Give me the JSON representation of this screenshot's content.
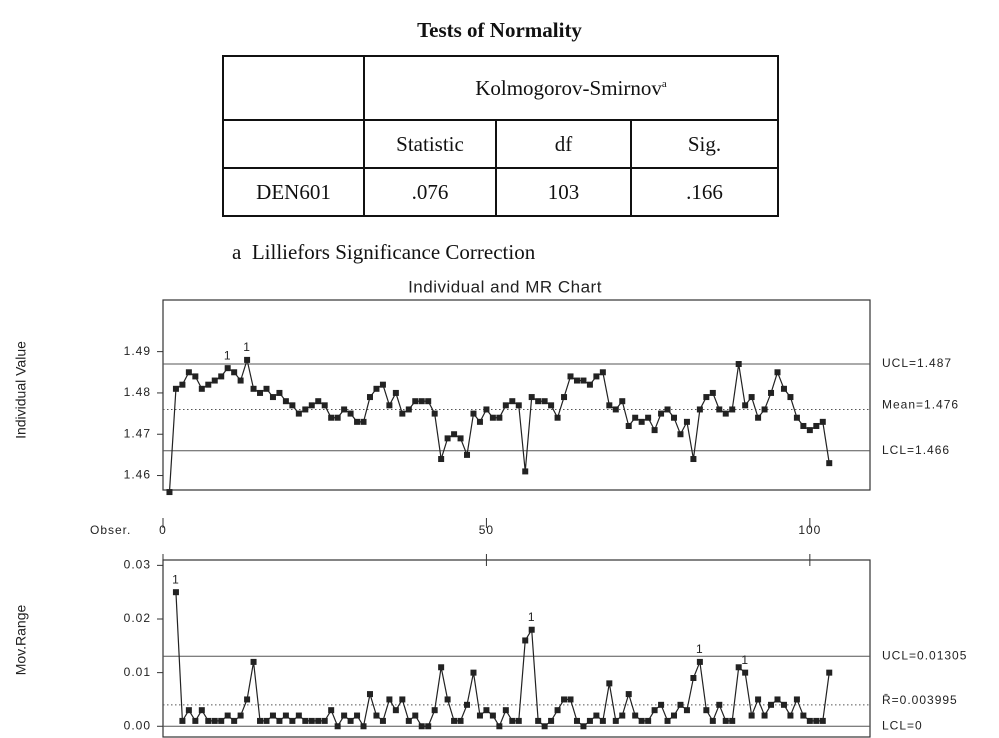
{
  "title": "Tests of Normality",
  "table": {
    "group_header": "Kolmogorov-Smirnov",
    "group_header_note": "a",
    "columns": [
      "Statistic",
      "df",
      "Sig."
    ],
    "rows": [
      [
        "DEN601",
        ".076",
        "103",
        ".166"
      ]
    ]
  },
  "footnote": "a  Lilliefors Significance Correction",
  "chart_data": [
    {
      "type": "line",
      "title": "Individual and MR Chart",
      "ylabel": "Individual Value",
      "xlabel": "Obser.",
      "x": [
        1,
        2,
        3,
        4,
        5,
        6,
        7,
        8,
        9,
        10,
        11,
        12,
        13,
        14,
        15,
        16,
        17,
        18,
        19,
        20,
        21,
        22,
        23,
        24,
        25,
        26,
        27,
        28,
        29,
        30,
        31,
        32,
        33,
        34,
        35,
        36,
        37,
        38,
        39,
        40,
        41,
        42,
        43,
        44,
        45,
        46,
        47,
        48,
        49,
        50,
        51,
        52,
        53,
        54,
        55,
        56,
        57,
        58,
        59,
        60,
        61,
        62,
        63,
        64,
        65,
        66,
        67,
        68,
        69,
        70,
        71,
        72,
        73,
        74,
        75,
        76,
        77,
        78,
        79,
        80,
        81,
        82,
        83,
        84,
        85,
        86,
        87,
        88,
        89,
        90,
        91,
        92,
        93,
        94,
        95,
        96,
        97,
        98,
        99,
        100,
        101,
        102,
        103
      ],
      "values": [
        1.456,
        1.481,
        1.482,
        1.485,
        1.484,
        1.481,
        1.482,
        1.483,
        1.484,
        1.486,
        1.485,
        1.483,
        1.488,
        1.481,
        1.48,
        1.481,
        1.479,
        1.48,
        1.478,
        1.477,
        1.475,
        1.476,
        1.477,
        1.478,
        1.477,
        1.474,
        1.474,
        1.476,
        1.475,
        1.473,
        1.473,
        1.479,
        1.481,
        1.482,
        1.477,
        1.48,
        1.475,
        1.476,
        1.478,
        1.478,
        1.478,
        1.475,
        1.464,
        1.469,
        1.47,
        1.469,
        1.465,
        1.475,
        1.473,
        1.476,
        1.474,
        1.474,
        1.477,
        1.478,
        1.477,
        1.461,
        1.479,
        1.478,
        1.478,
        1.477,
        1.474,
        1.479,
        1.484,
        1.483,
        1.483,
        1.482,
        1.484,
        1.485,
        1.477,
        1.476,
        1.478,
        1.472,
        1.474,
        1.473,
        1.474,
        1.471,
        1.475,
        1.476,
        1.474,
        1.47,
        1.473,
        1.464,
        1.476,
        1.479,
        1.48,
        1.476,
        1.475,
        1.476,
        1.487,
        1.477,
        1.479,
        1.474,
        1.476,
        1.48,
        1.485,
        1.481,
        1.479,
        1.474,
        1.472,
        1.471,
        1.472,
        1.473,
        1.463
      ],
      "color": "#222",
      "xlim": [
        0,
        109.3
      ],
      "xticks": [
        0,
        50,
        100
      ],
      "ylim": [
        1.4565,
        1.5025
      ],
      "yticks": [
        1.49,
        1.48,
        1.47,
        1.46
      ],
      "lines": [
        {
          "value": 1.487,
          "label": "UCL=1.487",
          "style": "solid"
        },
        {
          "value": 1.476,
          "label": "Mean=1.476",
          "style": "dotted"
        },
        {
          "value": 1.466,
          "label": "LCL=1.466",
          "style": "solid"
        }
      ],
      "annotations": [
        {
          "x": 10,
          "text": "1"
        },
        {
          "x": 13,
          "text": "1"
        }
      ]
    },
    {
      "type": "line",
      "ylabel": "Mov.Range",
      "x": [
        2,
        3,
        4,
        5,
        6,
        7,
        8,
        9,
        10,
        11,
        12,
        13,
        14,
        15,
        16,
        17,
        18,
        19,
        20,
        21,
        22,
        23,
        24,
        25,
        26,
        27,
        28,
        29,
        30,
        31,
        32,
        33,
        34,
        35,
        36,
        37,
        38,
        39,
        40,
        41,
        42,
        43,
        44,
        45,
        46,
        47,
        48,
        49,
        50,
        51,
        52,
        53,
        54,
        55,
        56,
        57,
        58,
        59,
        60,
        61,
        62,
        63,
        64,
        65,
        66,
        67,
        68,
        69,
        70,
        71,
        72,
        73,
        74,
        75,
        76,
        77,
        78,
        79,
        80,
        81,
        82,
        83,
        84,
        85,
        86,
        87,
        88,
        89,
        90,
        91,
        92,
        93,
        94,
        95,
        96,
        97,
        98,
        99,
        100,
        101,
        102,
        103
      ],
      "values": [
        0.025,
        0.001,
        0.003,
        0.001,
        0.003,
        0.001,
        0.001,
        0.001,
        0.002,
        0.001,
        0.002,
        0.005,
        0.012,
        0.001,
        0.001,
        0.002,
        0.001,
        0.002,
        0.001,
        0.002,
        0.001,
        0.001,
        0.001,
        0.001,
        0.003,
        0,
        0.002,
        0.001,
        0.002,
        0,
        0.006,
        0.002,
        0.001,
        0.005,
        0.003,
        0.005,
        0.001,
        0.002,
        0,
        0,
        0.003,
        0.011,
        0.005,
        0.001,
        0.001,
        0.004,
        0.01,
        0.002,
        0.003,
        0.002,
        0,
        0.003,
        0.001,
        0.001,
        0.016,
        0.018,
        0.001,
        0,
        0.001,
        0.003,
        0.005,
        0.005,
        0.001,
        0,
        0.001,
        0.002,
        0.001,
        0.008,
        0.001,
        0.002,
        0.006,
        0.002,
        0.001,
        0.001,
        0.003,
        0.004,
        0.001,
        0.002,
        0.004,
        0.003,
        0.009,
        0.012,
        0.003,
        0.001,
        0.004,
        0.001,
        0.001,
        0.011,
        0.01,
        0.002,
        0.005,
        0.002,
        0.004,
        0.005,
        0.004,
        0.002,
        0.005,
        0.002,
        0.001,
        0.001,
        0.001,
        0.01
      ],
      "color": "#222",
      "xlim": [
        0,
        109.3
      ],
      "ylim": [
        -0.002,
        0.031
      ],
      "yticks": [
        0.03,
        0.02,
        0.01,
        {
          "value": 0,
          "label": "0.00"
        }
      ],
      "lines": [
        {
          "value": 0.01305,
          "label": "UCL=0.01305",
          "style": "solid"
        },
        {
          "value": 0.003995,
          "label": "R̄=0.003995",
          "style": "dotted"
        },
        {
          "value": 0,
          "label": "LCL=0",
          "style": "solid"
        }
      ],
      "annotations": [
        {
          "x": 2,
          "text": "1"
        },
        {
          "x": 57,
          "text": "1"
        },
        {
          "x": 83,
          "text": "1"
        },
        {
          "x": 90,
          "text": "1"
        }
      ]
    }
  ]
}
